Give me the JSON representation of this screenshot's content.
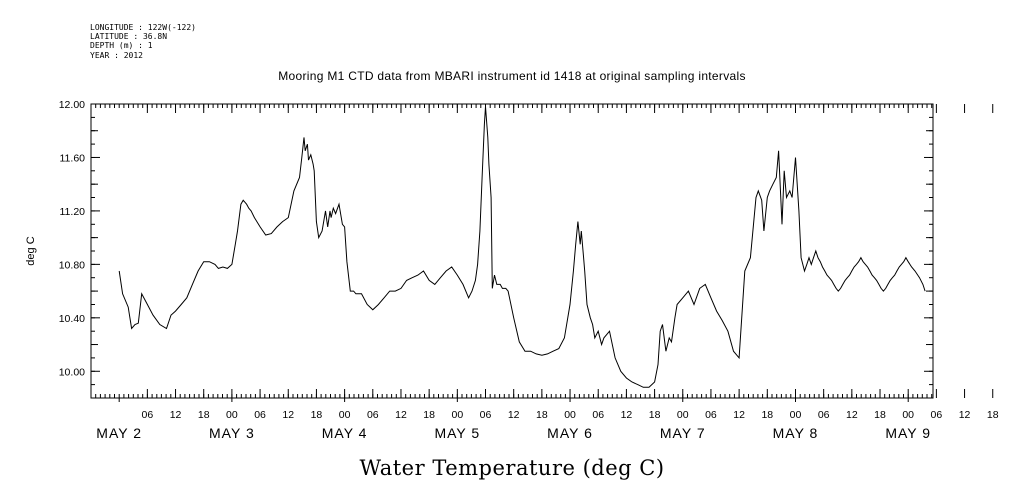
{
  "metadata_lines": [
    "LONGITUDE : 122W(-122)",
    "LATITUDE : 36.8N",
    "DEPTH (m) : 1",
    "YEAR : 2012"
  ],
  "chart_data": {
    "type": "line",
    "title": "Mooring M1 CTD data from MBARI instrument id 1418 at original sampling intervals",
    "xlabel": "Water Temperature (deg C)",
    "ylabel": "deg C",
    "xlim": [
      2.0,
      9.0
    ],
    "ylim": [
      9.8,
      12.0
    ],
    "y_ticks": [
      "10.00",
      "10.40",
      "10.80",
      "11.20",
      "11.60",
      "12.00"
    ],
    "x_hour_ticks": [
      "06",
      "12",
      "18",
      "00",
      "06",
      "12",
      "18",
      "00",
      "06",
      "12",
      "18",
      "00",
      "06",
      "12",
      "18",
      "00",
      "06",
      "12",
      "18",
      "00",
      "06",
      "12",
      "18",
      "00",
      "06",
      "12",
      "18",
      "00",
      "06",
      "12",
      "18",
      "00"
    ],
    "x_day_labels": [
      "MAY  2",
      "MAY  3",
      "MAY  4",
      "MAY  5",
      "MAY  6",
      "MAY  7",
      "MAY  8",
      "MAY  9"
    ],
    "grid": false,
    "series": [
      {
        "x": [
          2.0,
          2.03,
          2.08,
          2.11,
          2.14,
          2.17,
          2.2,
          2.2,
          2.25,
          2.3,
          2.36,
          2.42,
          2.46,
          2.5,
          2.55,
          2.6,
          2.65,
          2.7,
          2.75,
          2.8,
          2.85,
          2.88,
          2.92,
          2.96,
          3.0,
          3.03,
          3.05,
          3.08,
          3.1,
          3.13,
          3.15,
          3.17,
          3.2,
          3.25,
          3.3,
          3.35,
          3.4,
          3.45,
          3.5,
          3.55,
          3.6,
          3.62,
          3.64,
          3.65,
          3.67,
          3.68,
          3.7,
          3.72,
          3.73,
          3.75,
          3.77,
          3.8,
          3.83,
          3.85,
          3.87,
          3.88,
          3.9,
          3.92,
          3.95,
          3.98,
          4.0,
          4.02,
          4.05,
          4.08,
          4.1,
          4.15,
          4.2,
          4.25,
          4.3,
          4.35,
          4.4,
          4.45,
          4.5,
          4.55,
          4.6,
          4.65,
          4.7,
          4.75,
          4.8,
          4.85,
          4.9,
          4.95,
          5.0,
          5.05,
          5.1,
          5.13,
          5.16,
          5.18,
          5.2,
          5.22,
          5.24,
          5.25,
          5.27,
          5.28,
          5.3,
          5.31,
          5.33,
          5.35,
          5.38,
          5.4,
          5.43,
          5.45,
          5.5,
          5.55,
          5.6,
          5.65,
          5.7,
          5.75,
          5.8,
          5.85,
          5.9,
          5.95,
          6.0,
          6.03,
          6.05,
          6.07,
          6.09,
          6.1,
          6.12,
          6.13,
          6.15,
          6.18,
          6.2,
          6.22,
          6.25,
          6.28,
          6.3,
          6.35,
          6.4,
          6.45,
          6.5,
          6.55,
          6.6,
          6.65,
          6.7,
          6.75,
          6.78,
          6.8,
          6.82,
          6.85,
          6.88,
          6.9,
          6.93,
          6.95,
          7.0,
          7.05,
          7.1,
          7.15,
          7.2,
          7.25,
          7.3,
          7.35,
          7.4,
          7.45,
          7.5,
          7.55,
          7.6,
          7.65,
          7.67,
          7.7,
          7.72,
          7.75,
          7.77,
          7.8,
          7.83,
          7.85,
          7.88,
          7.9,
          7.92,
          7.95,
          7.97,
          8.0,
          8.03,
          8.05,
          8.08,
          8.1,
          8.12,
          8.14,
          8.16,
          8.18,
          8.2,
          8.22,
          8.24,
          8.26,
          8.28,
          8.3,
          8.32,
          8.34,
          8.36,
          8.38,
          8.4,
          8.42,
          8.44,
          8.46,
          8.48,
          8.5,
          8.52,
          8.54,
          8.56,
          8.58,
          8.6,
          8.62,
          8.64,
          8.66,
          8.68,
          8.7,
          8.72,
          8.74,
          8.76,
          8.78,
          8.8,
          8.82,
          8.84,
          8.86,
          8.88,
          8.9,
          8.92,
          8.94,
          8.96,
          8.98,
          9.0,
          9.03,
          9.06,
          9.1,
          9.13,
          9.15
        ],
        "y": [
          10.75,
          10.58,
          10.48,
          10.32,
          10.35,
          10.36,
          10.58,
          10.58,
          10.5,
          10.42,
          10.35,
          10.32,
          10.42,
          10.45,
          10.5,
          10.55,
          10.65,
          10.75,
          10.82,
          10.82,
          10.8,
          10.77,
          10.78,
          10.77,
          10.8,
          10.95,
          11.05,
          11.25,
          11.28,
          11.25,
          11.22,
          11.2,
          11.15,
          11.08,
          11.02,
          11.03,
          11.08,
          11.12,
          11.15,
          11.35,
          11.45,
          11.6,
          11.75,
          11.65,
          11.7,
          11.58,
          11.62,
          11.55,
          11.5,
          11.12,
          11.0,
          11.05,
          11.2,
          11.08,
          11.2,
          11.15,
          11.22,
          11.18,
          11.25,
          11.1,
          11.08,
          10.82,
          10.6,
          10.6,
          10.58,
          10.58,
          10.5,
          10.46,
          10.5,
          10.55,
          10.6,
          10.6,
          10.62,
          10.68,
          10.7,
          10.72,
          10.75,
          10.68,
          10.65,
          10.7,
          10.75,
          10.78,
          10.72,
          10.65,
          10.55,
          10.6,
          10.68,
          10.8,
          11.05,
          11.45,
          11.85,
          11.98,
          11.75,
          11.55,
          11.3,
          10.62,
          10.72,
          10.65,
          10.65,
          10.62,
          10.62,
          10.6,
          10.4,
          10.22,
          10.15,
          10.15,
          10.13,
          10.12,
          10.13,
          10.15,
          10.17,
          10.25,
          10.5,
          10.75,
          10.95,
          11.12,
          10.95,
          11.05,
          10.85,
          10.75,
          10.5,
          10.4,
          10.35,
          10.25,
          10.3,
          10.2,
          10.25,
          10.3,
          10.1,
          10.0,
          9.95,
          9.92,
          9.9,
          9.88,
          9.88,
          9.92,
          10.05,
          10.3,
          10.35,
          10.15,
          10.25,
          10.22,
          10.4,
          10.5,
          10.55,
          10.6,
          10.5,
          10.62,
          10.65,
          10.55,
          10.45,
          10.38,
          10.3,
          10.15,
          10.1,
          10.75,
          10.85,
          11.3,
          11.35,
          11.28,
          11.05,
          11.3,
          11.35,
          11.4,
          11.45,
          11.65,
          11.1,
          11.5,
          11.3,
          11.35,
          11.3,
          11.6,
          11.2,
          10.85,
          10.75,
          10.8,
          10.85,
          10.8,
          10.85,
          10.9,
          10.85,
          10.82,
          10.78,
          10.75,
          10.72,
          10.7,
          10.68,
          10.65,
          10.62,
          10.6,
          10.62,
          10.65,
          10.68,
          10.7,
          10.72,
          10.75,
          10.78,
          10.8,
          10.82,
          10.85,
          10.82,
          10.8,
          10.78,
          10.75,
          10.72,
          10.7,
          10.68,
          10.65,
          10.62,
          10.6,
          10.62,
          10.65,
          10.68,
          10.7,
          10.72,
          10.75,
          10.78,
          10.8,
          10.82,
          10.85,
          10.82,
          10.78,
          10.75,
          10.7,
          10.65,
          10.6
        ]
      }
    ]
  }
}
